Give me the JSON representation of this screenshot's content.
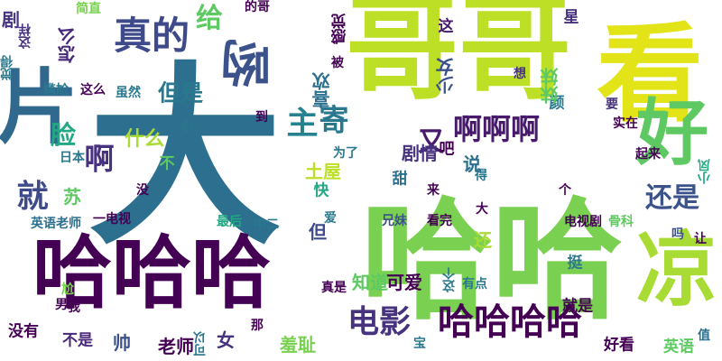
{
  "cloud": {
    "words": [
      {
        "text": "大",
        "color": "#2c6f8e",
        "vertical": false
      },
      {
        "text": "哈哈",
        "color": "#7ad151",
        "vertical": false
      },
      {
        "text": "哥哥",
        "color": "#bddf26",
        "vertical": false
      },
      {
        "text": "看",
        "color": "#e2e418",
        "vertical": false
      },
      {
        "text": "哈哈哈",
        "color": "#440154",
        "vertical": false
      },
      {
        "text": "片",
        "color": "#31688e",
        "vertical": false
      },
      {
        "text": "凉",
        "color": "#a8db34",
        "vertical": false
      },
      {
        "text": "好",
        "color": "#5ec962",
        "vertical": false
      },
      {
        "text": "哟",
        "color": "#3b528b",
        "vertical": true
      },
      {
        "text": "哈哈哈哈",
        "color": "#440154",
        "vertical": false
      },
      {
        "text": "真的",
        "color": "#3e4a89",
        "vertical": false
      },
      {
        "text": "电影",
        "color": "#46327e",
        "vertical": false
      },
      {
        "text": "给",
        "color": "#5ec962",
        "vertical": false
      },
      {
        "text": "主",
        "color": "#26828e",
        "vertical": false
      },
      {
        "text": "啊啊啊",
        "color": "#481a6c",
        "vertical": false
      },
      {
        "text": "寄",
        "color": "#2a788e",
        "vertical": false
      },
      {
        "text": "就",
        "color": "#3e4a89",
        "vertical": false
      },
      {
        "text": "脸",
        "color": "#22a884",
        "vertical": false
      },
      {
        "text": "啊",
        "color": "#46327e",
        "vertical": false
      },
      {
        "text": "还是",
        "color": "#3b528b",
        "vertical": false
      },
      {
        "text": "又",
        "color": "#481a6c",
        "vertical": false
      },
      {
        "text": "但是",
        "color": "#2a788e",
        "vertical": false
      },
      {
        "text": "什么",
        "color": "#a8db34",
        "vertical": false
      },
      {
        "text": "怎么",
        "color": "#482878",
        "vertical": true
      },
      {
        "text": "剧情",
        "color": "#46327e",
        "vertical": false
      },
      {
        "text": "可爱",
        "color": "#440154",
        "vertical": false
      },
      {
        "text": "知道",
        "color": "#5ec962",
        "vertical": false
      },
      {
        "text": "羞耻",
        "color": "#7ad151",
        "vertical": false
      },
      {
        "text": "老师",
        "color": "#440154",
        "vertical": false
      },
      {
        "text": "女",
        "color": "#46327e",
        "vertical": false
      },
      {
        "text": "帅",
        "color": "#3b528b",
        "vertical": false
      },
      {
        "text": "不是",
        "color": "#482878",
        "vertical": false
      },
      {
        "text": "没有",
        "color": "#440154",
        "vertical": false
      },
      {
        "text": "好看",
        "color": "#440154",
        "vertical": false
      },
      {
        "text": "就是",
        "color": "#440154",
        "vertical": false
      },
      {
        "text": "英语老师",
        "color": "#2c6f8e",
        "vertical": false
      },
      {
        "text": "英语",
        "color": "#5ec962",
        "vertical": false
      },
      {
        "text": "说",
        "color": "#2c6f8e",
        "vertical": false
      },
      {
        "text": "吧",
        "color": "#440154",
        "vertical": false
      },
      {
        "text": "甜",
        "color": "#2c6f8e",
        "vertical": false
      },
      {
        "text": "苏",
        "color": "#5ec962",
        "vertical": false
      },
      {
        "text": "不",
        "color": "#5ec962",
        "vertical": false
      },
      {
        "text": "颜",
        "color": "#2a788e",
        "vertical": false
      },
      {
        "text": "土屋",
        "color": "#bddf26",
        "vertical": false
      },
      {
        "text": "妹妹",
        "color": "#5ec962",
        "vertical": true
      },
      {
        "text": "少女",
        "color": "#3b528b",
        "vertical": true
      },
      {
        "text": "喜欢",
        "color": "#2c6f8e",
        "vertical": true
      },
      {
        "text": "感觉",
        "color": "#440154",
        "vertical": true
      },
      {
        "text": "星",
        "color": "#46327e",
        "vertical": false
      },
      {
        "text": "这",
        "color": "#481a6c",
        "vertical": false
      },
      {
        "text": "还",
        "color": "#a8db34",
        "vertical": false
      },
      {
        "text": "但",
        "color": "#3e4a89",
        "vertical": false
      },
      {
        "text": "快",
        "color": "#22a884",
        "vertical": false
      },
      {
        "text": "中二",
        "color": "#2a788e",
        "vertical": false
      },
      {
        "text": "挺",
        "color": "#2a788e",
        "vertical": false
      },
      {
        "text": "一电视",
        "color": "#440154",
        "vertical": false
      },
      {
        "text": "虽然",
        "color": "#2a788e",
        "vertical": false
      },
      {
        "text": "这么",
        "color": "#440154",
        "vertical": false
      },
      {
        "text": "觉得",
        "color": "#2a788e",
        "vertical": true
      },
      {
        "text": "这样",
        "color": "#46327e",
        "vertical": true
      },
      {
        "text": "剧",
        "color": "#46327e",
        "vertical": false
      },
      {
        "text": "简直",
        "color": "#7ad151",
        "vertical": false
      },
      {
        "text": "的哥",
        "color": "#440154",
        "vertical": false
      },
      {
        "text": "被",
        "color": "#440154",
        "vertical": false
      },
      {
        "text": "想",
        "color": "#46327e",
        "vertical": false
      },
      {
        "text": "要",
        "color": "#46327e",
        "vertical": false
      },
      {
        "text": "实在",
        "color": "#440154",
        "vertical": false
      },
      {
        "text": "起来",
        "color": "#440154",
        "vertical": false
      },
      {
        "text": "小凤",
        "color": "#22a884",
        "vertical": true
      },
      {
        "text": "个",
        "color": "#440154",
        "vertical": false
      },
      {
        "text": "来",
        "color": "#440154",
        "vertical": false
      },
      {
        "text": "大",
        "color": "#440154",
        "vertical": false
      },
      {
        "text": "得",
        "color": "#2a788e",
        "vertical": false
      },
      {
        "text": "兄妹",
        "color": "#3b528b",
        "vertical": false
      },
      {
        "text": "看完",
        "color": "#440154",
        "vertical": false
      },
      {
        "text": "爱",
        "color": "#2a788e",
        "vertical": false
      },
      {
        "text": "电视剧",
        "color": "#440154",
        "vertical": false
      },
      {
        "text": "骨科",
        "color": "#5ec962",
        "vertical": false
      },
      {
        "text": "让",
        "color": "#440154",
        "vertical": false
      },
      {
        "text": "吗",
        "color": "#3b528b",
        "vertical": false
      },
      {
        "text": "真是",
        "color": "#440154",
        "vertical": false
      },
      {
        "text": "有点",
        "color": "#2a788e",
        "vertical": false
      },
      {
        "text": "这个",
        "color": "#2a788e",
        "vertical": true
      },
      {
        "text": "那",
        "color": "#440154",
        "vertical": false
      },
      {
        "text": "可以",
        "color": "#2a788e",
        "vertical": true
      },
      {
        "text": "宝",
        "color": "#2a788e",
        "vertical": false
      },
      {
        "text": "值",
        "color": "#2c6f8e",
        "vertical": false
      },
      {
        "text": "最后",
        "color": "#22a884",
        "vertical": false
      },
      {
        "text": "尬",
        "color": "#7ad151",
        "vertical": false
      },
      {
        "text": "我",
        "color": "#440154",
        "vertical": false
      },
      {
        "text": "日本",
        "color": "#2a788e",
        "vertical": false
      },
      {
        "text": "没",
        "color": "#440154",
        "vertical": false
      },
      {
        "text": "为了",
        "color": "#2a788e",
        "vertical": false
      },
      {
        "text": "到",
        "color": "#440154",
        "vertical": false
      },
      {
        "text": "心",
        "color": "#2a788e",
        "vertical": false
      },
      {
        "text": "尴尬",
        "color": "#2a788e",
        "vertical": false
      },
      {
        "text": "男",
        "color": "#440154",
        "vertical": false
      }
    ]
  }
}
